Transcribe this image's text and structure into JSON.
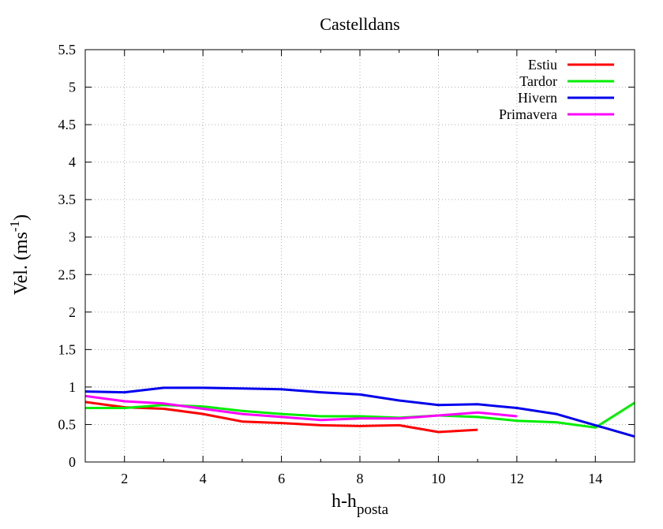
{
  "chart_data": {
    "type": "line",
    "title": "Castelldans",
    "xlabel": {
      "main": "h-h",
      "sub": "posta"
    },
    "ylabel": {
      "main": "Vel. (ms",
      "sup": "-1",
      "end": ")"
    },
    "xlim": [
      1,
      15
    ],
    "ylim": [
      0,
      5.5
    ],
    "xticks": [
      2,
      4,
      6,
      8,
      10,
      12,
      14
    ],
    "yticks": [
      0,
      0.5,
      1,
      1.5,
      2,
      2.5,
      3,
      3.5,
      4,
      4.5,
      5,
      5.5
    ],
    "ytick_labels": [
      "0",
      "0.5",
      "1",
      "1.5",
      "2",
      "2.5",
      "3",
      "3.5",
      "4",
      "4.5",
      "5",
      "5.5"
    ],
    "grid": true,
    "legend_position": "top-right",
    "series": [
      {
        "name": "Estiu",
        "color": "#ff0000",
        "x": [
          1,
          2,
          3,
          4,
          5,
          6,
          7,
          8,
          9,
          10,
          11
        ],
        "y": [
          0.8,
          0.73,
          0.71,
          0.64,
          0.54,
          0.52,
          0.49,
          0.48,
          0.49,
          0.4,
          0.43
        ]
      },
      {
        "name": "Tardor",
        "color": "#00ee00",
        "x": [
          1,
          2,
          3,
          4,
          5,
          6,
          7,
          8,
          9,
          10,
          11,
          12,
          13,
          14,
          15
        ],
        "y": [
          0.72,
          0.72,
          0.76,
          0.74,
          0.68,
          0.64,
          0.61,
          0.61,
          0.59,
          0.62,
          0.6,
          0.55,
          0.53,
          0.46,
          0.79
        ]
      },
      {
        "name": "Hivern",
        "color": "#0000ee",
        "x": [
          1,
          2,
          3,
          4,
          5,
          6,
          7,
          8,
          9,
          10,
          11,
          12,
          13,
          14,
          15
        ],
        "y": [
          0.94,
          0.93,
          0.99,
          0.99,
          0.98,
          0.97,
          0.93,
          0.9,
          0.82,
          0.76,
          0.77,
          0.72,
          0.64,
          0.49,
          0.34
        ]
      },
      {
        "name": "Primavera",
        "color": "#ff00ff",
        "x": [
          1,
          2,
          3,
          4,
          5,
          6,
          7,
          8,
          9,
          10,
          11,
          12
        ],
        "y": [
          0.88,
          0.81,
          0.78,
          0.71,
          0.64,
          0.6,
          0.56,
          0.58,
          0.58,
          0.62,
          0.66,
          0.61
        ]
      }
    ]
  }
}
